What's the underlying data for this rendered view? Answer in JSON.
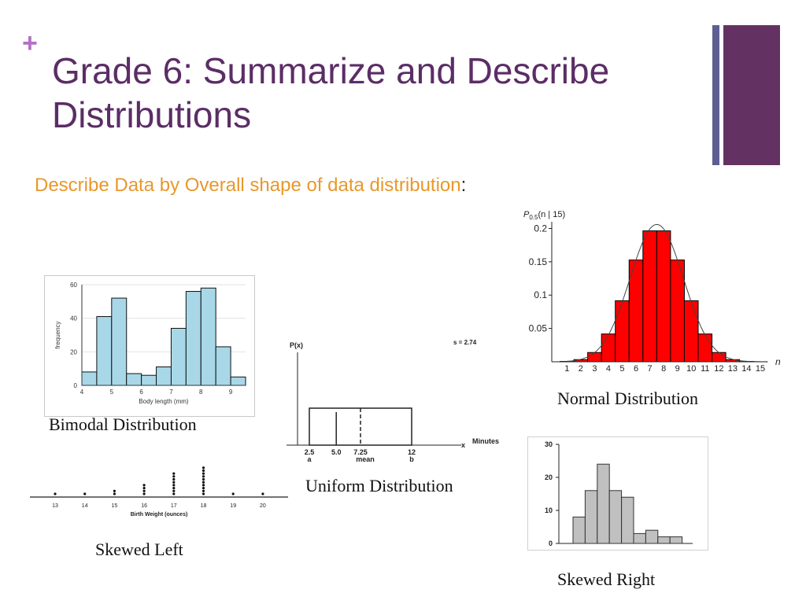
{
  "slide": {
    "plus": "+",
    "title": "Grade 6: Summarize and Describe Distributions",
    "subtitle": "Describe Data by Overall shape of data distribution",
    "subtitle_colon": ":"
  },
  "colors": {
    "title": "#5b2d66",
    "accent": "#e8982b",
    "bar_thin": "#5e5e92",
    "bar_wide": "#633262"
  },
  "captions": {
    "bimodal": "Bimodal Distribution",
    "normal": "Normal Distribution",
    "uniform": "Uniform Distribution",
    "skewed_left": "Skewed Left",
    "skewed_right": "Skewed Right"
  },
  "chart_data": [
    {
      "id": "bimodal",
      "type": "bar",
      "xlabel": "Body length (mm)",
      "ylabel": "frequency",
      "xlim": [
        4,
        9.5
      ],
      "ylim": [
        0,
        60
      ],
      "xticks": [
        4,
        5,
        6,
        7,
        8,
        9
      ],
      "yticks": [
        0,
        20,
        40,
        60
      ],
      "bin_width": 0.5,
      "bins": [
        4,
        4.5,
        5,
        5.5,
        6,
        6.5,
        7,
        7.5,
        8,
        8.5,
        9
      ],
      "values": [
        8,
        41,
        52,
        7,
        6,
        11,
        34,
        56,
        58,
        23,
        5
      ],
      "color": "#a8d8e8"
    },
    {
      "id": "normal",
      "type": "bar",
      "ylabel": "P0.5(n | 15)",
      "xlabel": "n",
      "categories": [
        1,
        2,
        3,
        4,
        5,
        6,
        7,
        8,
        9,
        10,
        11,
        12,
        13,
        14,
        15
      ],
      "values": [
        0.0005,
        0.0032,
        0.0139,
        0.0417,
        0.0916,
        0.1527,
        0.1964,
        0.1964,
        0.1527,
        0.0916,
        0.0417,
        0.0139,
        0.0032,
        0.0005,
        3e-05
      ],
      "ylim": [
        0,
        0.21
      ],
      "yticks": [
        "0.05",
        "0.1",
        "0.15",
        "0.2"
      ],
      "color": "#ff0000"
    },
    {
      "id": "uniform",
      "type": "line",
      "ylabel": "P(x)",
      "xlabel": "x",
      "unit_label": "Minutes",
      "a": 2.5,
      "b": 12,
      "mean": 7.25,
      "marker": 5.0,
      "xticks": [
        "2.5",
        "5.0",
        "7.25",
        "12"
      ],
      "sublabels": {
        "a": "a",
        "mean": "mean",
        "b": "b"
      },
      "annotation": "s = 2.74"
    },
    {
      "id": "skewed_left",
      "type": "scatter",
      "xlabel": "Birth Weight (ounces)",
      "categories": [
        13,
        14,
        15,
        16,
        17,
        18,
        19,
        20
      ],
      "values": [
        1,
        1,
        2,
        4,
        8,
        10,
        1,
        1
      ]
    },
    {
      "id": "skewed_right",
      "type": "bar",
      "yticks": [
        0,
        10,
        20,
        30
      ],
      "ylim": [
        0,
        30
      ],
      "values": [
        8,
        16,
        24,
        16,
        14,
        3,
        4,
        2,
        2
      ],
      "color": "#c0c0c0"
    }
  ]
}
